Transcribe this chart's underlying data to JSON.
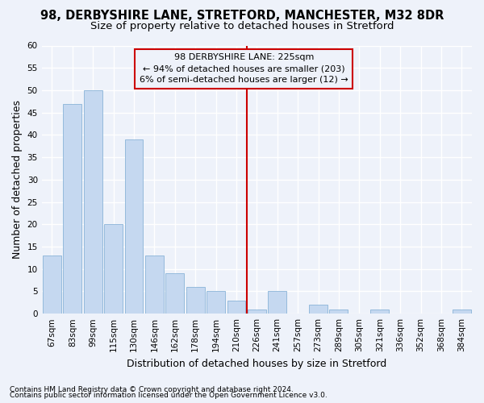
{
  "title1": "98, DERBYSHIRE LANE, STRETFORD, MANCHESTER, M32 8DR",
  "title2": "Size of property relative to detached houses in Stretford",
  "xlabel": "Distribution of detached houses by size in Stretford",
  "ylabel": "Number of detached properties",
  "categories": [
    "67sqm",
    "83sqm",
    "99sqm",
    "115sqm",
    "130sqm",
    "146sqm",
    "162sqm",
    "178sqm",
    "194sqm",
    "210sqm",
    "226sqm",
    "241sqm",
    "257sqm",
    "273sqm",
    "289sqm",
    "305sqm",
    "321sqm",
    "336sqm",
    "352sqm",
    "368sqm",
    "384sqm"
  ],
  "values": [
    13,
    47,
    50,
    20,
    39,
    13,
    9,
    6,
    5,
    3,
    1,
    5,
    0,
    2,
    1,
    0,
    1,
    0,
    0,
    0,
    1
  ],
  "bar_color": "#c5d8f0",
  "bar_edgecolor": "#8ab4d8",
  "vline_index": 10,
  "annotation_title": "98 DERBYSHIRE LANE: 225sqm",
  "annotation_line1": "← 94% of detached houses are smaller (203)",
  "annotation_line2": "6% of semi-detached houses are larger (12) →",
  "annotation_box_color": "#cc0000",
  "vline_color": "#cc0000",
  "ylim": [
    0,
    60
  ],
  "yticks": [
    0,
    5,
    10,
    15,
    20,
    25,
    30,
    35,
    40,
    45,
    50,
    55,
    60
  ],
  "footer1": "Contains HM Land Registry data © Crown copyright and database right 2024.",
  "footer2": "Contains public sector information licensed under the Open Government Licence v3.0.",
  "background_color": "#eef2fa",
  "grid_color": "#ffffff",
  "title1_fontsize": 10.5,
  "title2_fontsize": 9.5,
  "ylabel_fontsize": 9,
  "xlabel_fontsize": 9,
  "tick_fontsize": 7.5,
  "annot_fontsize": 8,
  "footer_fontsize": 6.5
}
